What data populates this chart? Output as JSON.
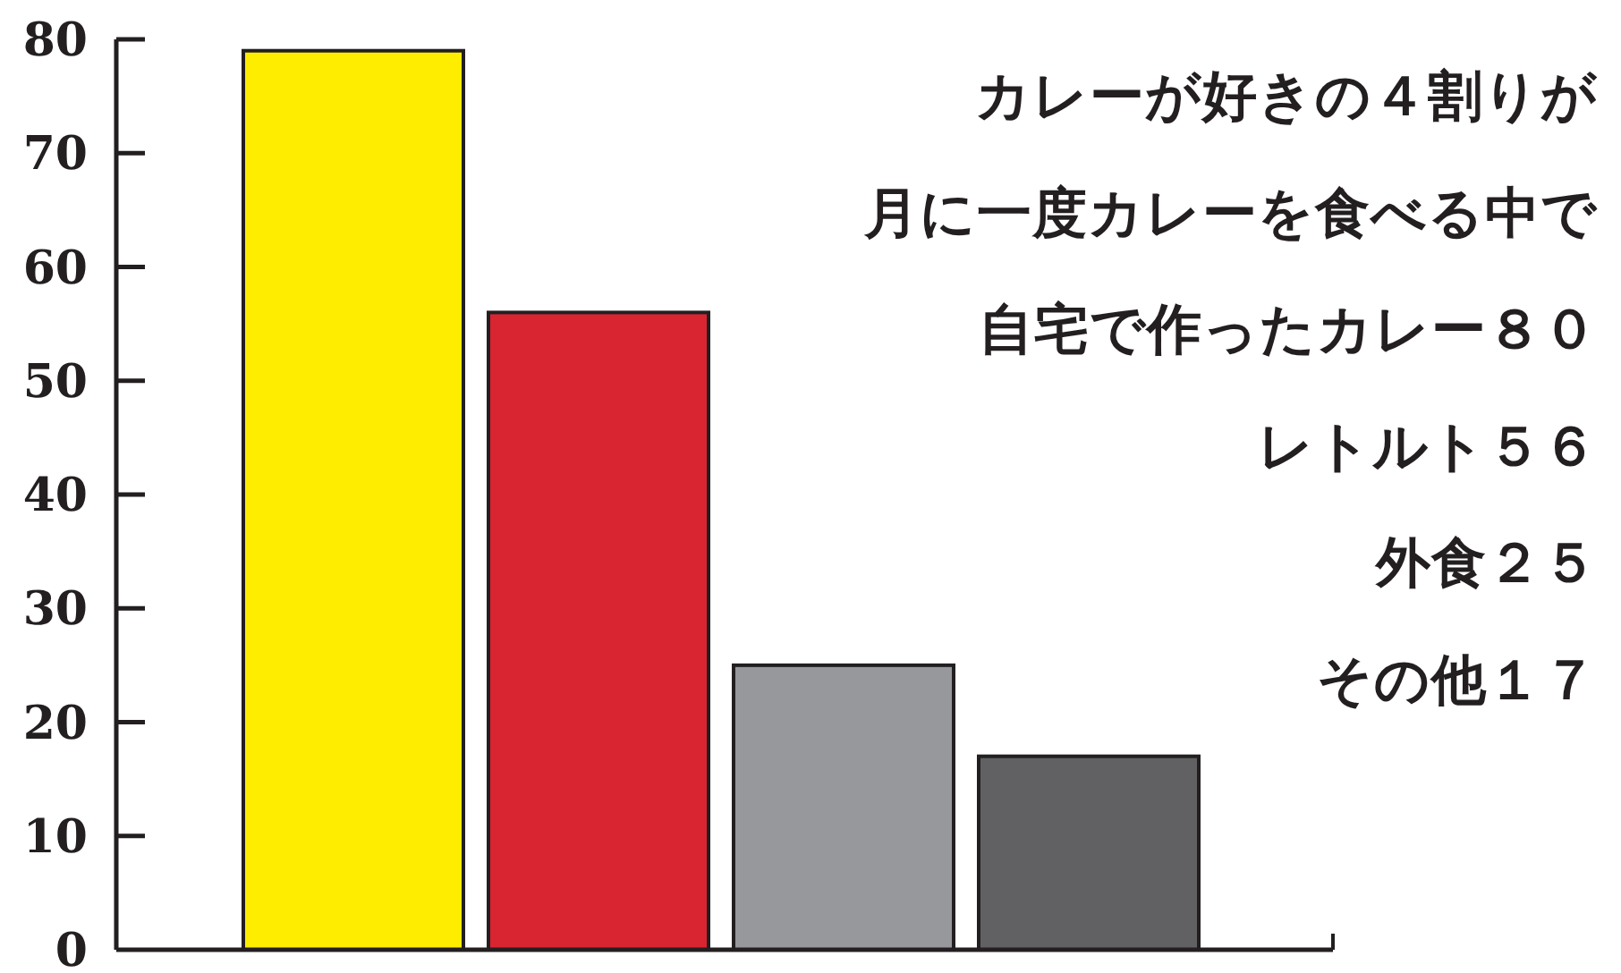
{
  "chart_data": {
    "type": "bar",
    "categories": [
      null,
      null,
      null,
      null
    ],
    "values": [
      79,
      56,
      25,
      17
    ],
    "colors": [
      "#ffed00",
      "#d92432",
      "#97989c",
      "#616163"
    ],
    "ylim": [
      0,
      80
    ],
    "yticks": [
      0,
      10,
      20,
      30,
      40,
      50,
      60,
      70,
      80
    ],
    "annotations": [
      "カレーが好きの４割りが",
      "月に一度カレーを食べる中で",
      "自宅で作ったカレー８０",
      "レトルト５６",
      "外食２５",
      "その他１７"
    ]
  }
}
